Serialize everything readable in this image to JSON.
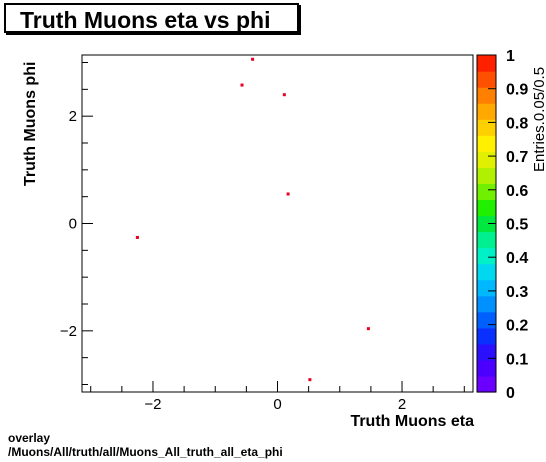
{
  "chart_data": {
    "type": "scatter",
    "title": "Truth Muons eta vs phi",
    "xlabel": "Truth Muons eta",
    "ylabel": "Truth Muons phi",
    "xlim": [
      -3.14,
      3.14
    ],
    "ylim": [
      -3.14,
      3.14
    ],
    "x_ticks": [
      -2,
      0,
      2
    ],
    "x_tick_labels": [
      "−2",
      "0",
      "2"
    ],
    "y_ticks": [
      -2,
      0,
      2
    ],
    "y_tick_labels": [
      "−2",
      "0",
      "2"
    ],
    "points": [
      {
        "x": -0.4,
        "y": 3.06
      },
      {
        "x": -0.57,
        "y": 2.58
      },
      {
        "x": 0.11,
        "y": 2.4
      },
      {
        "x": 0.17,
        "y": 0.55
      },
      {
        "x": -2.25,
        "y": -0.26
      },
      {
        "x": 1.46,
        "y": -1.96
      },
      {
        "x": 0.52,
        "y": -2.91
      }
    ],
    "point_color": "#e8001c",
    "colorbar": {
      "label": "Entries.0.05/0.5",
      "range": [
        0,
        1
      ],
      "tick_values": [
        0,
        0.1,
        0.2,
        0.3,
        0.4,
        0.5,
        0.6,
        0.7,
        0.8,
        0.9,
        1
      ],
      "tick_labels": [
        "0",
        "0.1",
        "0.2",
        "0.3",
        "0.4",
        "0.5",
        "0.6",
        "0.7",
        "0.8",
        "0.9",
        "1"
      ],
      "colors": [
        "#6a00ff",
        "#4b00ff",
        "#2a10ff",
        "#0a30ff",
        "#0060ff",
        "#0090ff",
        "#00b8ff",
        "#00d8f0",
        "#00f0c8",
        "#00f090",
        "#00e840",
        "#20f000",
        "#70f000",
        "#b0f000",
        "#e0f000",
        "#fff000",
        "#ffd000",
        "#ffa800",
        "#ff8000",
        "#ff5000",
        "#ff2000"
      ]
    }
  },
  "footer": {
    "line1": "overlay",
    "line2": "/Muons/All/truth/all/Muons_All_truth_all_eta_phi"
  }
}
